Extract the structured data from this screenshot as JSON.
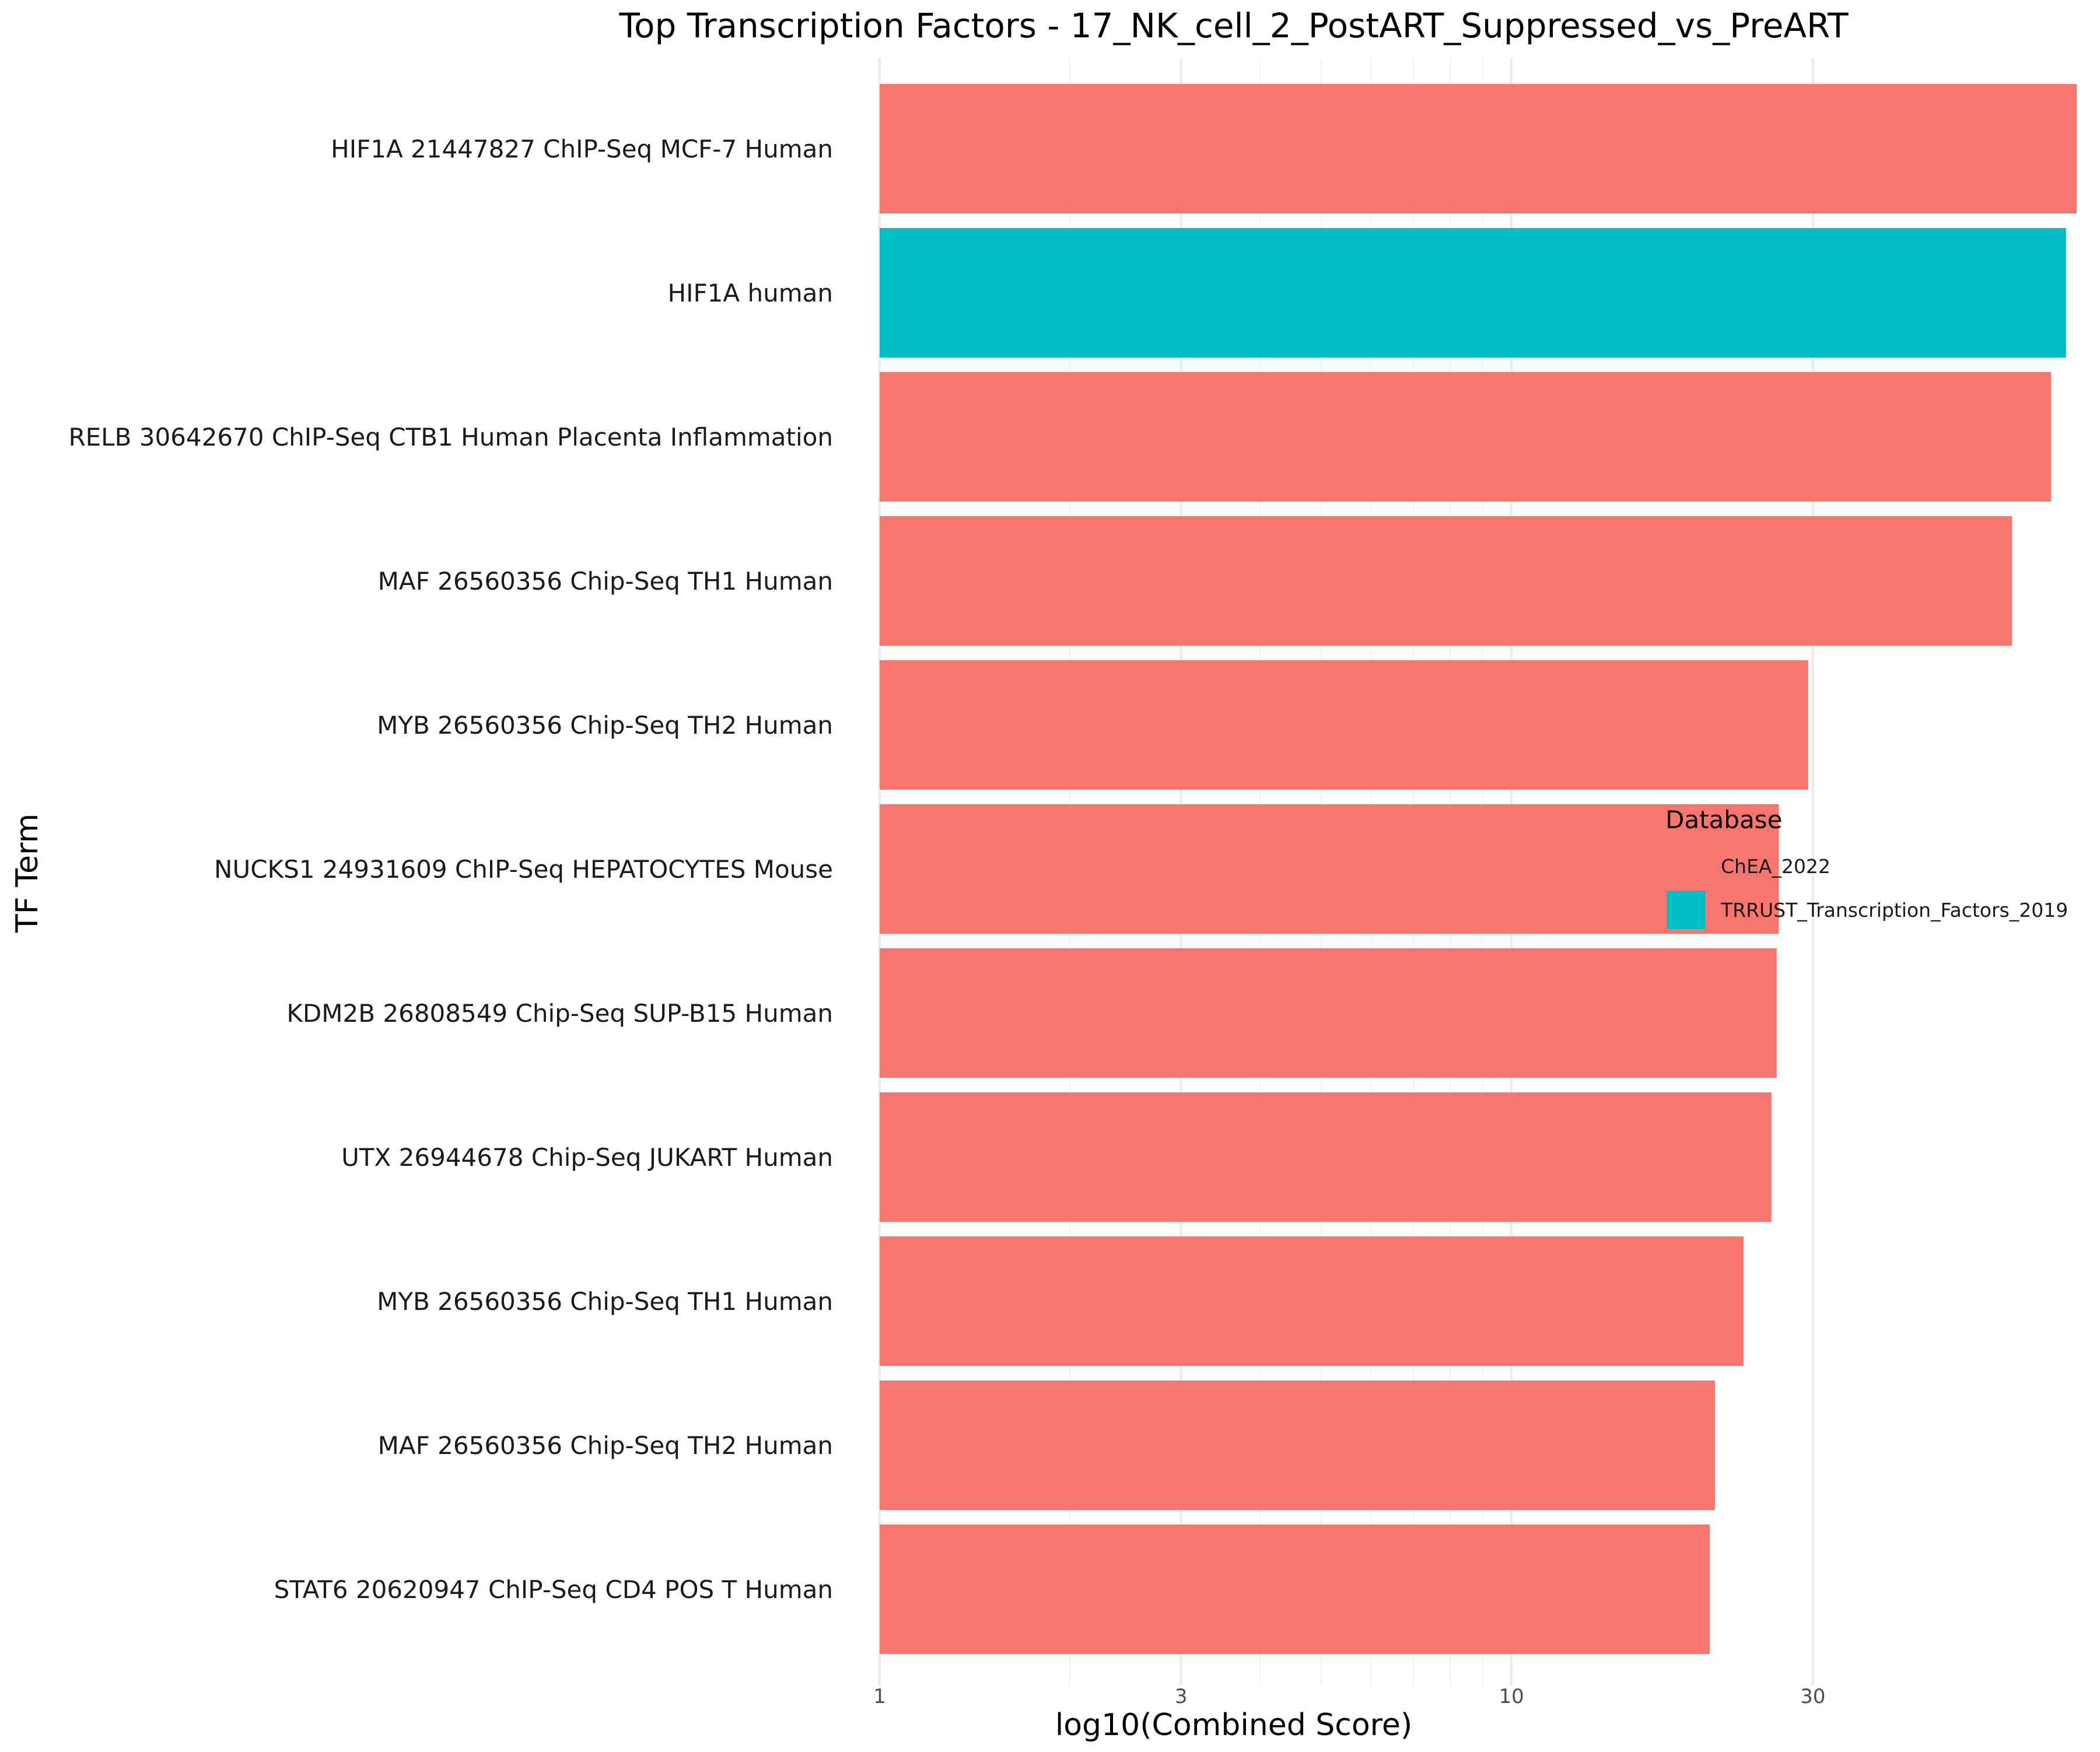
{
  "chart_data": {
    "type": "bar",
    "orientation": "horizontal",
    "title": "Top Transcription Factors - 17_NK_cell_2_PostART_Suppressed_vs_PreART",
    "xlabel": "log10(Combined Score)",
    "ylabel": "TF Term",
    "x_scale": "log10",
    "xlim": [
      1,
      100
    ],
    "x_ticks": [
      1,
      3,
      10,
      30
    ],
    "x_tick_labels": [
      "1",
      "3",
      "10",
      "30"
    ],
    "grid": true,
    "legend": {
      "title": "Database",
      "placement": "right",
      "entries": [
        {
          "label": "ChEA_2022",
          "color": "#F8766D"
        },
        {
          "label": "TRRUST_Transcription_Factors_2019",
          "color": "#00BFC4"
        }
      ]
    },
    "categories": [
      "HIF1A 21447827 ChIP-Seq MCF-7 Human",
      "HIF1A human",
      "RELB 30642670 ChIP-Seq CTB1 Human Placenta Inflammation",
      "MAF 26560356 Chip-Seq TH1 Human",
      "MYB 26560356 Chip-Seq TH2 Human",
      "NUCKS1 24931609 ChIP-Seq HEPATOCYTES Mouse",
      "KDM2B 26808549 Chip-Seq SUP-B15 Human",
      "UTX 26944678 Chip-Seq JUKART Human",
      "MYB 26560356 Chip-Seq TH1 Human",
      "MAF 26560356 Chip-Seq TH2 Human",
      "STAT6 20620947 ChIP-Seq CD4 POS T Human"
    ],
    "values": [
      78.5,
      75.5,
      71.5,
      62.0,
      29.5,
      26.5,
      26.3,
      25.8,
      23.3,
      21.0,
      20.6
    ],
    "database": [
      "ChEA_2022",
      "TRRUST_Transcription_Factors_2019",
      "ChEA_2022",
      "ChEA_2022",
      "ChEA_2022",
      "ChEA_2022",
      "ChEA_2022",
      "ChEA_2022",
      "ChEA_2022",
      "ChEA_2022",
      "ChEA_2022"
    ]
  }
}
